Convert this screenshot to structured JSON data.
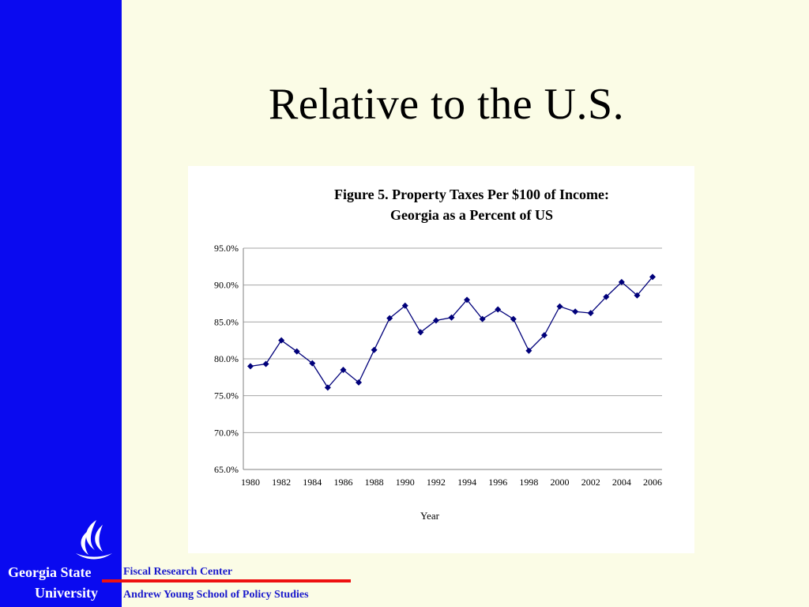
{
  "slide": {
    "title": "Relative to the U.S."
  },
  "branding": {
    "university_line1": "Georgia State",
    "university_line2": "University",
    "center": "Fiscal Research Center",
    "school": "Andrew Young School of Policy Studies",
    "logo_icon": "flame-logo-icon"
  },
  "colors": {
    "sidebar": "#0a0af0",
    "background": "#fbfce6",
    "series": "#00007a",
    "footer_text": "#1a1acc",
    "footer_rule": "#ee1111"
  },
  "chart_data": {
    "type": "line",
    "title_line1": "Figure  5. Property Taxes Per $100 of Income:",
    "title_line2": "Georgia as a Percent of US",
    "xlabel": "Year",
    "ylabel": "",
    "ylim": [
      65,
      95
    ],
    "yticks": [
      "65.0%",
      "70.0%",
      "75.0%",
      "80.0%",
      "85.0%",
      "90.0%",
      "95.0%"
    ],
    "ytick_values": [
      65,
      70,
      75,
      80,
      85,
      90,
      95
    ],
    "xtick_labels": [
      "1980",
      "1982",
      "1984",
      "1986",
      "1988",
      "1990",
      "1992",
      "1994",
      "1996",
      "1998",
      "2000",
      "2002",
      "2004",
      "2006"
    ],
    "grid": true,
    "marker": "diamond",
    "x": [
      1980,
      1981,
      1982,
      1983,
      1984,
      1985,
      1986,
      1987,
      1988,
      1989,
      1990,
      1991,
      1992,
      1993,
      1994,
      1995,
      1996,
      1997,
      1998,
      1999,
      2000,
      2001,
      2002,
      2003,
      2004,
      2005,
      2006
    ],
    "values": [
      79.0,
      79.3,
      82.5,
      81.0,
      79.4,
      76.1,
      78.5,
      76.8,
      81.2,
      85.5,
      87.2,
      83.6,
      85.2,
      85.6,
      88.0,
      85.4,
      86.7,
      85.4,
      81.1,
      83.2,
      87.1,
      86.4,
      86.2,
      88.4,
      90.4,
      88.6,
      91.1
    ]
  }
}
